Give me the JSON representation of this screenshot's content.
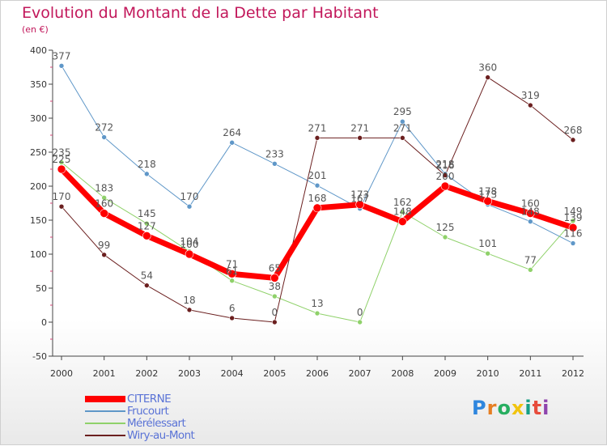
{
  "header": {
    "title": "Evolution du Montant de la Dette par Habitant",
    "subtitle": "(en €)"
  },
  "logo": {
    "text": "Proxiti",
    "letter_colors": [
      "#2e86de",
      "#e67e22",
      "#27ae60",
      "#f1c40f",
      "#16a085",
      "#e74c3c",
      "#8e44ad"
    ]
  },
  "chart_data": {
    "type": "line",
    "title": "Evolution du Montant de la Dette par Habitant",
    "subtitle": "(en €)",
    "xlabel": "",
    "ylabel": "",
    "x": [
      "2000",
      "2001",
      "2002",
      "2003",
      "2004",
      "2005",
      "2006",
      "2007",
      "2008",
      "2009",
      "2010",
      "2011",
      "2012"
    ],
    "ylim": [
      -50,
      400
    ],
    "yticks": [
      -50,
      0,
      50,
      100,
      150,
      200,
      250,
      300,
      350,
      400
    ],
    "grid": false,
    "legend_position": "bottom-left",
    "series": [
      {
        "name": "CITERNE",
        "color": "#ff0000",
        "width": 7,
        "values": [
          225,
          160,
          127,
          100,
          71,
          65,
          168,
          173,
          148,
          200,
          178,
          160,
          139
        ]
      },
      {
        "name": "Frucourt",
        "color": "#5f97c8",
        "width": 1,
        "values": [
          377,
          272,
          218,
          170,
          264,
          233,
          201,
          167,
          295,
          218,
          173,
          148,
          116
        ]
      },
      {
        "name": "Mérélessart",
        "color": "#8fd16a",
        "width": 1,
        "values": [
          235,
          183,
          145,
          104,
          61,
          38,
          13,
          0,
          162,
          125,
          101,
          77,
          149
        ]
      },
      {
        "name": "Wiry-au-Mont",
        "color": "#6b1f1f",
        "width": 1,
        "values": [
          170,
          99,
          54,
          18,
          6,
          0,
          271,
          271,
          271,
          216,
          360,
          319,
          268
        ]
      }
    ]
  }
}
